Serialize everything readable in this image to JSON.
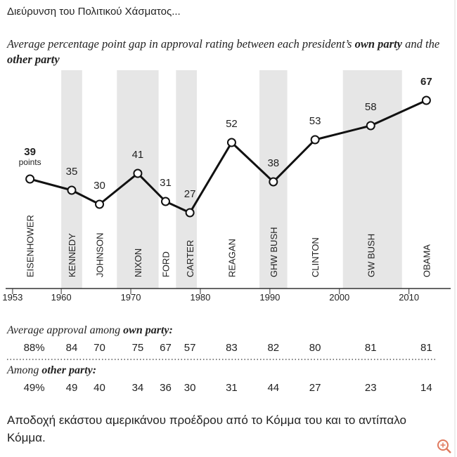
{
  "chart_data": {
    "type": "line",
    "title": "Διεύρυνση του Πολιτικού Χάσματος...",
    "subtitle_parts": [
      "Average percentage point gap in approval rating between each president’s ",
      "own party",
      " and the ",
      "other party"
    ],
    "x": [
      1955.5,
      1961.5,
      1965.5,
      1971,
      1975,
      1978.5,
      1984.5,
      1990.5,
      1996.5,
      2004.5,
      2012.5
    ],
    "values": [
      39,
      35,
      30,
      41,
      31,
      27,
      52,
      38,
      53,
      58,
      67
    ],
    "presidents": [
      "EISENHOWER",
      "KENNEDY",
      "JOHNSON",
      "NIXON",
      "FORD",
      "CARTER",
      "REAGAN",
      "GHW BUSH",
      "CLINTON",
      "GW BUSH",
      "OBAMA"
    ],
    "unit_annotation": "points",
    "color": "#111111",
    "shaded_periods": [
      [
        1960,
        1963
      ],
      [
        1968,
        1974
      ],
      [
        1976.5,
        1979.5
      ],
      [
        1988.5,
        1992.5
      ],
      [
        2000.5,
        2009
      ]
    ],
    "xlim": [
      1952,
      2016
    ],
    "xticks": [
      1953,
      1960,
      1970,
      1980,
      1990,
      2000,
      2010
    ],
    "ylim": [
      0,
      75
    ],
    "own_party": {
      "label_parts": [
        "Average approval among ",
        "own party:"
      ],
      "values": [
        88,
        84,
        70,
        75,
        67,
        57,
        83,
        82,
        80,
        81,
        81
      ],
      "value_labels": [
        "88%",
        "84",
        "70",
        "75",
        "67",
        "57",
        "83",
        "82",
        "80",
        "81",
        "81"
      ]
    },
    "other_party": {
      "label_parts": [
        "Among ",
        "other party:"
      ],
      "values": [
        49,
        49,
        40,
        34,
        36,
        30,
        31,
        44,
        27,
        23,
        14
      ],
      "value_labels": [
        "49%",
        "49",
        "40",
        "34",
        "36",
        "30",
        "31",
        "44",
        "27",
        "23",
        "14"
      ]
    },
    "caption": "Αποδοχή εκάστου αμερικάνου προέδρου από το Κόμμα του και το αντίπαλο Κόμμα."
  }
}
